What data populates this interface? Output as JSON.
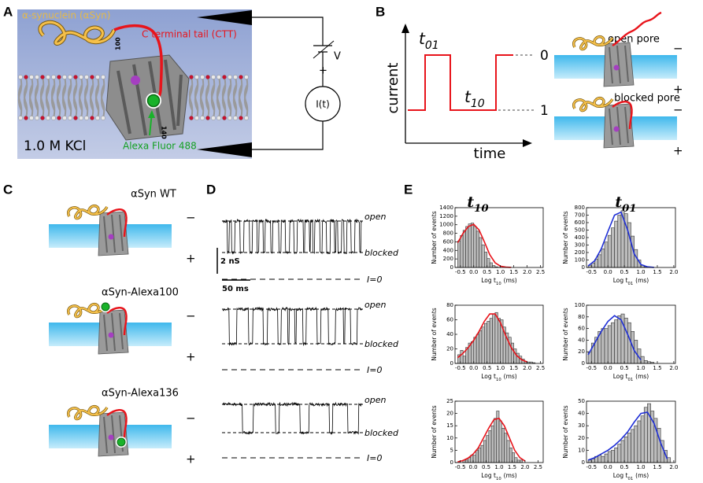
{
  "panels": {
    "A": {
      "label": "A",
      "protein": "α-synuclein (αSyn)",
      "tail": "C terminal tail (CTT)",
      "residue_100": "100",
      "residue_140": "140",
      "dye": "Alexa Fluor 488",
      "buffer": "1.0 M KCl",
      "voltage": "V",
      "plus": "+",
      "current": "I(t)"
    },
    "B": {
      "label": "B",
      "y_label": "current",
      "x_label": "time",
      "t01": {
        "base": "t",
        "sub": "01"
      },
      "t10": {
        "base": "t",
        "sub": "10"
      },
      "level_open": "0",
      "level_blocked": "1",
      "open_pore": "open pore",
      "blocked_pore": "blocked pore",
      "minus": "−",
      "plus": "+"
    },
    "C": {
      "label": "C",
      "constructs": [
        "αSyn WT",
        "αSyn-Alexa100",
        "αSyn-Alexa136"
      ],
      "minus": "−",
      "plus": "+"
    },
    "D": {
      "label": "D",
      "open": "open",
      "blocked": "blocked",
      "zero": "I=0",
      "scale_y": "2 nS",
      "scale_x": "50 ms"
    },
    "E": {
      "label": "E",
      "columns": [
        {
          "base": "t",
          "sub": "10"
        },
        {
          "base": "t",
          "sub": "01"
        }
      ]
    }
  },
  "chart_data": [
    {
      "type": "histogram",
      "ylabel": "Number of events",
      "xlabel": {
        "pre": "Log t",
        "sub": "10",
        "post": "(ms)"
      },
      "bins": [
        -0.6,
        -0.5,
        -0.4,
        -0.3,
        -0.2,
        -0.1,
        0,
        0.1,
        0.2,
        0.3,
        0.4,
        0.5,
        0.6,
        0.7,
        0.8,
        0.9,
        1.0
      ],
      "values": [
        620,
        750,
        870,
        960,
        1020,
        1040,
        960,
        850,
        700,
        530,
        360,
        210,
        110,
        45,
        15,
        5
      ],
      "color": "#bdbdbd",
      "fit": {
        "color": "#e8141b",
        "x": [
          -0.6,
          -0.4,
          -0.2,
          0,
          0.2,
          0.4,
          0.6,
          0.8,
          1.0,
          1.2,
          1.4
        ],
        "values": [
          580,
          800,
          960,
          1010,
          880,
          600,
          300,
          110,
          30,
          8,
          2
        ]
      },
      "xlim": [
        -0.7,
        2.6
      ],
      "ylim": [
        0,
        1400
      ],
      "xticks": [
        -0.5,
        {
          "value": 0,
          "label": "0.0"
        },
        0.5,
        {
          "value": 1,
          "label": "1.0"
        },
        1.5,
        {
          "value": 2,
          "label": "2.0"
        },
        2.5
      ],
      "yticks": [
        0,
        200,
        400,
        600,
        800,
        1000,
        1200,
        1400
      ]
    },
    {
      "type": "histogram",
      "ylabel": "Number of events",
      "xlabel": {
        "pre": "Log t",
        "sub": "01",
        "post": "(ms)"
      },
      "bins": [
        -0.6,
        -0.5,
        -0.4,
        -0.3,
        -0.2,
        -0.1,
        0,
        0.1,
        0.2,
        0.3,
        0.4,
        0.5,
        0.6,
        0.7,
        0.8,
        0.9,
        1.0,
        1.1,
        1.2
      ],
      "values": [
        30,
        60,
        110,
        170,
        250,
        340,
        430,
        530,
        620,
        700,
        760,
        720,
        600,
        420,
        240,
        100,
        30,
        10
      ],
      "color": "#bdbdbd",
      "fit": {
        "color": "#1f2fd6",
        "x": [
          -0.6,
          -0.4,
          -0.2,
          0,
          0.2,
          0.4,
          0.6,
          0.8,
          1.0,
          1.2,
          1.4
        ],
        "values": [
          20,
          90,
          250,
          480,
          700,
          740,
          500,
          180,
          40,
          8,
          1
        ]
      },
      "xlim": [
        -0.65,
        2.05
      ],
      "ylim": [
        0,
        800
      ],
      "xticks": [
        -0.5,
        {
          "value": 0,
          "label": "0.0"
        },
        0.5,
        {
          "value": 1,
          "label": "1.0"
        },
        1.5,
        {
          "value": 2,
          "label": "2.0"
        }
      ],
      "yticks": [
        0,
        100,
        200,
        300,
        400,
        500,
        600,
        700,
        800
      ]
    },
    {
      "type": "histogram",
      "ylabel": "Number of events",
      "xlabel": {
        "pre": "Log t",
        "sub": "10",
        "post": "(ms)"
      },
      "bins": [
        -0.6,
        -0.5,
        -0.4,
        -0.3,
        -0.2,
        -0.1,
        0,
        0.1,
        0.2,
        0.3,
        0.4,
        0.5,
        0.6,
        0.7,
        0.8,
        0.9,
        1.0,
        1.1,
        1.2,
        1.3,
        1.4,
        1.5,
        1.6,
        1.7,
        1.8,
        1.9,
        2.0,
        2.1,
        2.2,
        2.3
      ],
      "values": [
        12,
        18,
        10,
        22,
        28,
        30,
        36,
        40,
        45,
        50,
        55,
        58,
        62,
        68,
        70,
        62,
        60,
        50,
        42,
        36,
        28,
        20,
        14,
        10,
        6,
        3,
        2,
        2,
        1
      ],
      "color": "#bdbdbd",
      "fit": {
        "color": "#e8141b",
        "x": [
          -0.6,
          -0.4,
          -0.2,
          0,
          0.2,
          0.4,
          0.6,
          0.8,
          1.0,
          1.2,
          1.4,
          1.6,
          1.8,
          2.0
        ],
        "values": [
          8,
          14,
          22,
          32,
          44,
          58,
          68,
          68,
          56,
          38,
          22,
          11,
          5,
          2
        ]
      },
      "xlim": [
        -0.7,
        2.6
      ],
      "ylim": [
        0,
        80
      ],
      "xticks": [
        -0.5,
        {
          "value": 0,
          "label": "0.0"
        },
        0.5,
        {
          "value": 1,
          "label": "1.0"
        },
        1.5,
        {
          "value": 2,
          "label": "2.0"
        },
        2.5
      ],
      "yticks": [
        0,
        20,
        40,
        60,
        80
      ]
    },
    {
      "type": "histogram",
      "ylabel": "Number of events",
      "xlabel": {
        "pre": "Log t",
        "sub": "01",
        "post": "(ms)"
      },
      "bins": [
        -0.6,
        -0.5,
        -0.4,
        -0.3,
        -0.2,
        -0.1,
        0,
        0.1,
        0.2,
        0.3,
        0.4,
        0.5,
        0.6,
        0.7,
        0.8,
        0.9,
        1.0,
        1.1,
        1.2,
        1.3,
        1.4
      ],
      "values": [
        20,
        35,
        45,
        55,
        60,
        60,
        65,
        70,
        75,
        82,
        85,
        78,
        70,
        55,
        40,
        25,
        12,
        5,
        3,
        2
      ],
      "color": "#bdbdbd",
      "fit": {
        "color": "#1f2fd6",
        "x": [
          -0.6,
          -0.4,
          -0.2,
          0,
          0.2,
          0.4,
          0.6,
          0.8,
          1.0
        ],
        "values": [
          15,
          35,
          55,
          72,
          82,
          75,
          50,
          22,
          6
        ]
      },
      "xlim": [
        -0.65,
        2.05
      ],
      "ylim": [
        0,
        100
      ],
      "xticks": [
        -0.5,
        {
          "value": 0,
          "label": "0.0"
        },
        0.5,
        {
          "value": 1,
          "label": "1.0"
        },
        1.5,
        {
          "value": 2,
          "label": "2.0"
        }
      ],
      "yticks": [
        0,
        20,
        40,
        60,
        80,
        100
      ]
    },
    {
      "type": "histogram",
      "ylabel": "Number of events",
      "xlabel": {
        "pre": "Log t",
        "sub": "10",
        "post": "(ms)"
      },
      "bins": [
        -0.5,
        -0.4,
        -0.3,
        -0.2,
        -0.1,
        0,
        0.1,
        0.2,
        0.3,
        0.4,
        0.5,
        0.6,
        0.7,
        0.8,
        0.9,
        1.0,
        1.1,
        1.2,
        1.3,
        1.4,
        1.5,
        1.6,
        1.7,
        1.8,
        1.9,
        2.0
      ],
      "values": [
        0,
        1,
        1,
        2,
        3,
        3,
        5,
        6,
        7,
        9,
        11,
        13,
        15,
        18,
        21,
        17,
        14,
        12,
        9,
        6,
        4,
        2,
        1,
        1,
        0
      ],
      "color": "#bdbdbd",
      "fit": {
        "color": "#e8141b",
        "x": [
          -0.6,
          -0.4,
          -0.2,
          0,
          0.2,
          0.4,
          0.6,
          0.8,
          1.0,
          1.2,
          1.4,
          1.6,
          1.8,
          2.0
        ],
        "values": [
          0.3,
          0.8,
          1.8,
          3.5,
          6,
          10,
          14,
          17.5,
          18,
          15,
          10,
          5,
          2,
          0.6
        ]
      },
      "xlim": [
        -0.7,
        2.7
      ],
      "ylim": [
        0,
        25
      ],
      "xticks": [
        -0.5,
        {
          "value": 0,
          "label": "0.0"
        },
        0.5,
        {
          "value": 1,
          "label": "1.0"
        },
        1.5,
        {
          "value": 2,
          "label": "2.0"
        },
        2.5
      ],
      "yticks": [
        0,
        5,
        10,
        15,
        20,
        25
      ]
    },
    {
      "type": "histogram",
      "ylabel": "Number of events",
      "xlabel": {
        "pre": "Log t",
        "sub": "01",
        "post": "(ms)"
      },
      "bins": [
        -0.6,
        -0.5,
        -0.4,
        -0.3,
        -0.2,
        -0.1,
        0,
        0.1,
        0.2,
        0.3,
        0.4,
        0.5,
        0.6,
        0.7,
        0.8,
        0.9,
        1.0,
        1.1,
        1.2,
        1.3,
        1.4,
        1.5,
        1.6,
        1.7,
        1.8,
        1.9
      ],
      "values": [
        2,
        3,
        5,
        6,
        5,
        7,
        9,
        10,
        12,
        15,
        18,
        21,
        24,
        27,
        30,
        34,
        38,
        45,
        48,
        42,
        36,
        28,
        18,
        10,
        4
      ],
      "color": "#bdbdbd",
      "fit": {
        "color": "#1f2fd6",
        "x": [
          -0.6,
          -0.4,
          -0.2,
          0,
          0.2,
          0.4,
          0.6,
          0.8,
          1.0,
          1.2,
          1.4,
          1.6,
          1.8
        ],
        "values": [
          2,
          4,
          7,
          10,
          14,
          19,
          25,
          33,
          40,
          41,
          32,
          16,
          3
        ]
      },
      "xlim": [
        -0.65,
        2.05
      ],
      "ylim": [
        0,
        50
      ],
      "xticks": [
        -0.5,
        {
          "value": 0,
          "label": "0.0"
        },
        0.5,
        {
          "value": 1,
          "label": "1.0"
        },
        1.5,
        {
          "value": 2,
          "label": "2.0"
        }
      ],
      "yticks": [
        0,
        10,
        20,
        30,
        40,
        50
      ]
    }
  ]
}
